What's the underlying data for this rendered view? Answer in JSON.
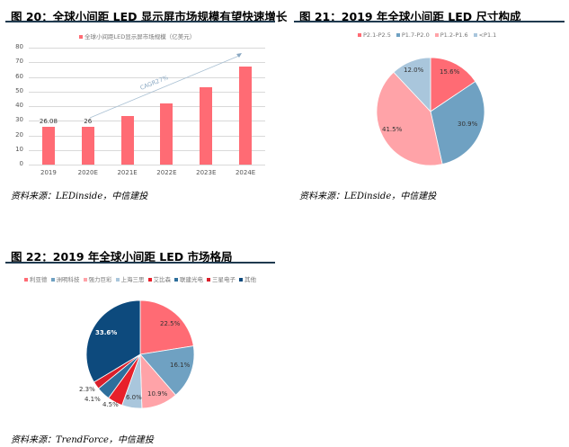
{
  "figures": [
    {
      "title": "图 20：全球小间距 LED 显示屏市场规模有望快速增长",
      "source": "资料来源：LEDinside，中信建投",
      "legend": "全球小间距LED显示屏市场规模（亿美元）",
      "annotation": "CAGR27%"
    },
    {
      "title": "图 21：2019 年全球小间距 LED 尺寸构成",
      "source": "资料来源：LEDinside，中信建投",
      "legend": [
        "P2.1-P2.5",
        "P1.7-P2.0",
        "P1.2-P1.6",
        "<P1.1"
      ]
    },
    {
      "title": "图 22：2019 年全球小间距 LED 市场格局",
      "source": "资料来源：TrendForce，中信建投",
      "legend": [
        "利亚德",
        "洲明科技",
        "强力巨彩",
        "上海三思",
        "艾比森",
        "联建光电",
        "三星电子",
        "其他"
      ]
    }
  ],
  "chart_data": [
    {
      "type": "bar",
      "title": "全球小间距LED显示屏市场规模（亿美元）",
      "categories": [
        "2019",
        "2020E",
        "2021E",
        "2022E",
        "2023E",
        "2024E"
      ],
      "values": [
        26.08,
        26,
        33,
        42,
        53,
        67
      ],
      "data_labels": [
        "26.08",
        "26",
        "",
        "",
        "",
        ""
      ],
      "yticks": [
        "0",
        "10",
        "20",
        "30",
        "40",
        "50",
        "60",
        "70",
        "80"
      ],
      "ylim": [
        0,
        80
      ],
      "grid": true,
      "color": "#ff6b74",
      "annotations": [
        "CAGR27%"
      ],
      "legend_position": "top"
    },
    {
      "type": "pie",
      "title": "2019年全球小间距LED尺寸构成",
      "labels": [
        "P2.1-P2.5",
        "P1.7-P2.0",
        "P1.2-P1.6",
        "<P1.1"
      ],
      "values": [
        15.6,
        30.9,
        41.5,
        12.0
      ],
      "value_labels": [
        "15.6%",
        "30.9%",
        "41.5%",
        "12.0%"
      ],
      "colors": [
        "#ff6b74",
        "#6fa1c2",
        "#ffa3a8",
        "#a9c6dc"
      ],
      "legend_position": "top"
    },
    {
      "type": "pie",
      "title": "2019年全球小间距LED市场格局",
      "labels": [
        "利亚德",
        "洲明科技",
        "强力巨彩",
        "上海三思",
        "艾比森",
        "联建光电",
        "三星电子",
        "其他"
      ],
      "values": [
        22.5,
        16.1,
        10.9,
        6.0,
        4.5,
        4.1,
        2.3,
        33.6
      ],
      "value_labels": [
        "22.5%",
        "16.1%",
        "10.9%",
        "6.0%",
        "4.5%",
        "4.1%",
        "2.3%",
        "33.6%"
      ],
      "colors": [
        "#ff6b74",
        "#6fa1c2",
        "#ffa3a8",
        "#a9c6dc",
        "#e8202a",
        "#2e6f9c",
        "#d91f2b",
        "#0d4a7d"
      ],
      "legend_position": "top"
    }
  ]
}
